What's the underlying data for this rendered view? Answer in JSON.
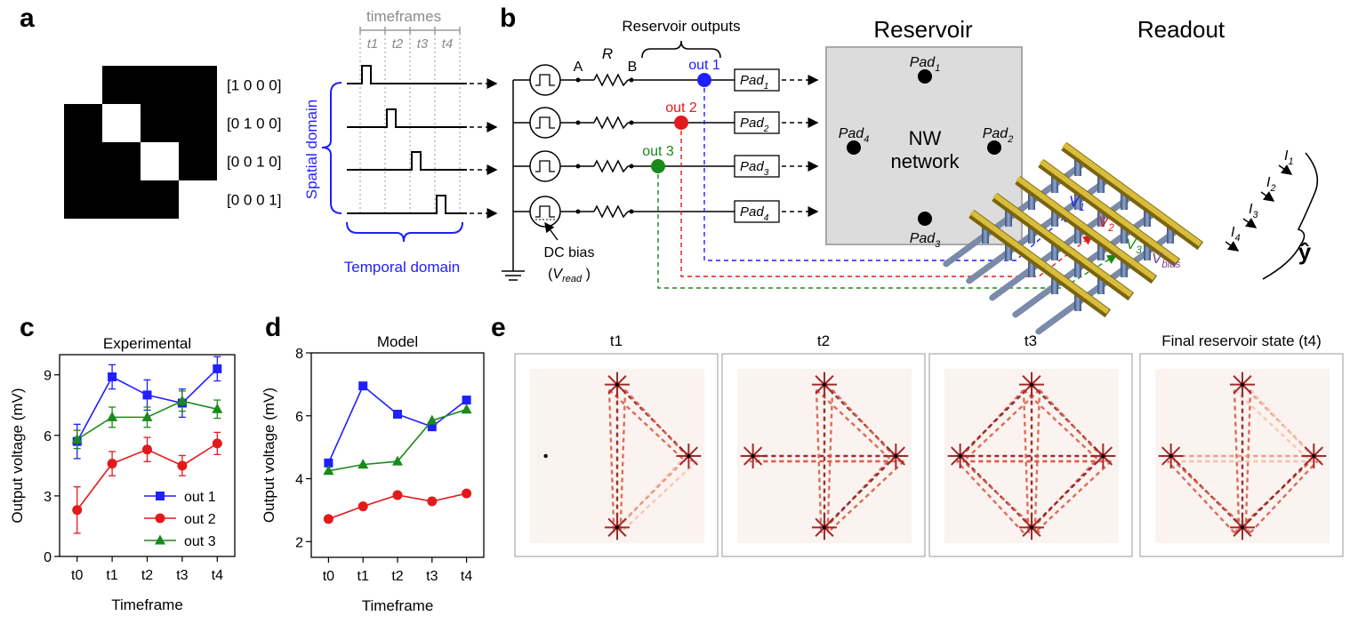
{
  "panel_labels": {
    "a": "a",
    "b": "b",
    "c": "c",
    "d": "d",
    "e": "e"
  },
  "panel_a": {
    "binary_matrix": [
      [
        1,
        0,
        0,
        0
      ],
      [
        0,
        1,
        0,
        0
      ],
      [
        0,
        0,
        1,
        0
      ],
      [
        0,
        0,
        0,
        1
      ]
    ],
    "row_labels": [
      "[1 0 0 0]",
      "[0 1 0 0]",
      "[0 0 1 0]",
      "[0 0 0 1]"
    ],
    "timeframes_label": "timeframes",
    "timeframe_ticks": [
      "t1",
      "t2",
      "t3",
      "t4"
    ],
    "spatial_label": "Spatial domain",
    "temporal_label": "Temporal domain"
  },
  "panel_b": {
    "reservoir_outputs_label": "Reservoir outputs",
    "node_A": "A",
    "node_B": "B",
    "resistor_label": "R",
    "outputs": [
      {
        "label": "out 1",
        "color": "#1f1fff"
      },
      {
        "label": "out 2",
        "color": "#e31a1c"
      },
      {
        "label": "out 3",
        "color": "#1a8a1a"
      }
    ],
    "pads": [
      "Pad1",
      "Pad2",
      "Pad3",
      "Pad4"
    ],
    "pad_base": "Pad",
    "pad_subs": [
      "1",
      "2",
      "3",
      "4"
    ],
    "dc_bias_label": "DC bias",
    "v_read_label": "(Vread )",
    "v_read_base": "V",
    "v_read_sub": "read",
    "reservoir_title": "Reservoir",
    "reservoir_center_line1": "NW",
    "reservoir_center_line2": "network",
    "readout_title": "Readout",
    "readout_voltages": [
      {
        "base": "V",
        "sub": "1",
        "color": "#1f1fff"
      },
      {
        "base": "V",
        "sub": "2",
        "color": "#e31a1c"
      },
      {
        "base": "V",
        "sub": "3",
        "color": "#1a8a1a"
      }
    ],
    "v_bias_base": "V",
    "v_bias_sub": "bias",
    "v_bias_color": "#7b3fa0",
    "currents": [
      {
        "base": "I",
        "sub": "1"
      },
      {
        "base": "I",
        "sub": "2"
      },
      {
        "base": "I",
        "sub": "3"
      },
      {
        "base": "I",
        "sub": "4"
      }
    ],
    "y_hat": "ŷ"
  },
  "chart_data": [
    {
      "type": "line",
      "title": "Experimental",
      "xlabel": "Timeframe",
      "ylabel": "Output voltage (mV)",
      "categories": [
        "t0",
        "t1",
        "t2",
        "t3",
        "t4"
      ],
      "ylim": [
        0,
        10
      ],
      "yticks": [
        0,
        3,
        6,
        9
      ],
      "legend_placement": "bottom-right",
      "series": [
        {
          "name": "out 1",
          "color": "#1f1fff",
          "marker": "square",
          "values": [
            5.7,
            8.9,
            8.0,
            7.6,
            9.3
          ],
          "errors": [
            0.85,
            0.6,
            0.75,
            0.7,
            0.6
          ]
        },
        {
          "name": "out 2",
          "color": "#e31a1c",
          "marker": "circle",
          "values": [
            2.3,
            4.6,
            5.3,
            4.5,
            5.6
          ],
          "errors": [
            1.15,
            0.6,
            0.6,
            0.5,
            0.55
          ]
        },
        {
          "name": "out 3",
          "color": "#1a8a1a",
          "marker": "triangle",
          "values": [
            5.8,
            6.9,
            6.9,
            7.7,
            7.3
          ],
          "errors": [
            0.45,
            0.5,
            0.5,
            0.5,
            0.45
          ]
        }
      ]
    },
    {
      "type": "line",
      "title": "Model",
      "xlabel": "Timeframe",
      "ylabel": "Output voltage (mV)",
      "categories": [
        "t0",
        "t1",
        "t2",
        "t3",
        "t4"
      ],
      "ylim": [
        1.5,
        8
      ],
      "yticks": [
        2,
        4,
        6,
        8
      ],
      "series": [
        {
          "name": "out 1",
          "color": "#1f1fff",
          "marker": "square",
          "values": [
            4.5,
            6.95,
            6.05,
            5.65,
            6.5
          ]
        },
        {
          "name": "out 2",
          "color": "#e31a1c",
          "marker": "circle",
          "values": [
            2.72,
            3.12,
            3.48,
            3.28,
            3.53
          ]
        },
        {
          "name": "out 3",
          "color": "#1a8a1a",
          "marker": "triangle",
          "values": [
            4.25,
            4.45,
            4.55,
            5.85,
            6.2
          ]
        }
      ]
    }
  ],
  "panel_e": {
    "snapshots": [
      {
        "title": "t1"
      },
      {
        "title": "t2"
      },
      {
        "title": "t3"
      },
      {
        "title": "Final reservoir state (t4)"
      }
    ]
  }
}
